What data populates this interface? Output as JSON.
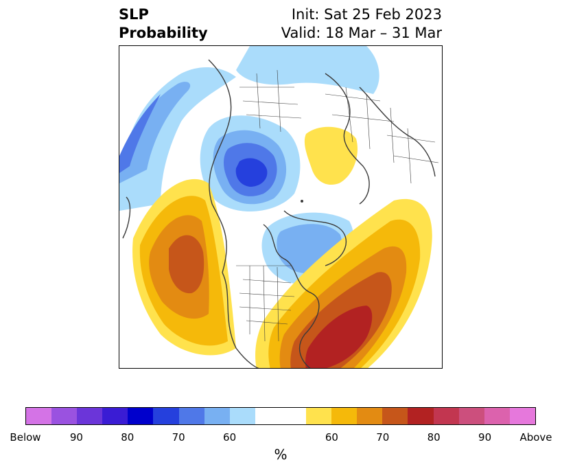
{
  "title": {
    "left_line1": "SLP",
    "left_line2": "Probability",
    "right_line1": "Init: Sat 25 Feb 2023",
    "right_line2": "Valid: 18 Mar – 31 Mar"
  },
  "colorbar": {
    "unit_label": "%",
    "tick_labels": [
      "Below",
      "90",
      "80",
      "70",
      "60",
      "60",
      "70",
      "80",
      "90",
      "Above"
    ],
    "colors_below": [
      "#d473e6",
      "#9a52e0",
      "#6b35d9",
      "#3a1cd4",
      "#0000cc",
      "#2540dd",
      "#4f78e8",
      "#78b0f2",
      "#aadcfb"
    ],
    "color_neutral": "#ffffff",
    "colors_above": [
      "#ffe24d",
      "#f5b90a",
      "#e38b12",
      "#c6561a",
      "#b22222",
      "#c23650",
      "#cc4f7d",
      "#dc62ad",
      "#e678dc"
    ]
  },
  "map": {
    "projection": "north-polar-stereographic",
    "boundaries_color": "#3a3a3a"
  }
}
